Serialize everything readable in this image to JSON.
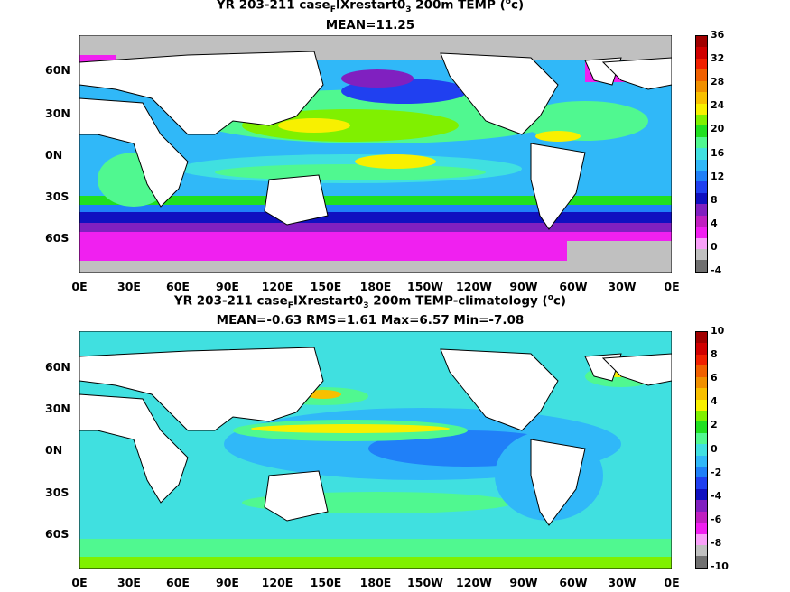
{
  "panels": [
    {
      "title_line1_prefix": "YR 203-211 case",
      "title_line1_sub1": "F",
      "title_line1_mid": "IXrestart0",
      "title_line1_sub2": "3",
      "title_line1_suffix": " 200m TEMP (",
      "title_line1_sup": "o",
      "title_line1_end": "c)",
      "title_line2": "MEAN=11.25",
      "colorbar_labels": [
        "36",
        "32",
        "28",
        "24",
        "20",
        "16",
        "12",
        "8",
        "4",
        "0",
        "-4"
      ],
      "colorbar_colors": [
        "#a00000",
        "#d00000",
        "#f02000",
        "#f06000",
        "#f09000",
        "#f8c000",
        "#f8f000",
        "#80f000",
        "#20e020",
        "#50f890",
        "#40e0e0",
        "#30b8f8",
        "#2080f8",
        "#2040f0",
        "#1010c0",
        "#8020c0",
        "#c020c0",
        "#f020f0",
        "#f8a0f8",
        "#c0c0c0",
        "#707070"
      ]
    },
    {
      "title_line1_prefix": "YR 203-211 case",
      "title_line1_sub1": "F",
      "title_line1_mid": "IXrestart0",
      "title_line1_sub2": "3",
      "title_line1_suffix": " 200m TEMP-climatology (",
      "title_line1_sup": "o",
      "title_line1_end": "c)",
      "title_line2": "MEAN=-0.63   RMS=1.61   Max=6.57   Min=-7.08",
      "colorbar_labels": [
        "10",
        "8",
        "6",
        "4",
        "2",
        "0",
        "-2",
        "-4",
        "-6",
        "-8",
        "-10"
      ],
      "colorbar_colors": [
        "#a00000",
        "#d00000",
        "#f02000",
        "#f06000",
        "#f09000",
        "#f8c000",
        "#f8f000",
        "#80f000",
        "#20e020",
        "#50f890",
        "#40e0e0",
        "#30b8f8",
        "#2080f8",
        "#2040f0",
        "#1010c0",
        "#8020c0",
        "#c020c0",
        "#f020f0",
        "#f8a0f8",
        "#c0c0c0",
        "#707070"
      ]
    }
  ],
  "lat_labels": [
    "60N",
    "30N",
    "0N",
    "30S",
    "60S"
  ],
  "lon_labels": [
    "0E",
    "30E",
    "60E",
    "90E",
    "120E",
    "150E",
    "180E",
    "150W",
    "120W",
    "90W",
    "60W",
    "30W",
    "0E"
  ]
}
